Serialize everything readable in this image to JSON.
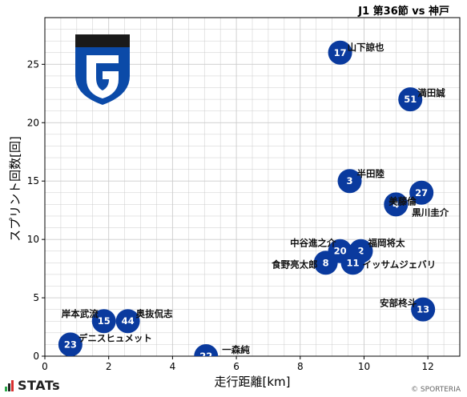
{
  "header": {
    "title": "J1 第36節 vs 神戸"
  },
  "footer": {
    "brand": "STATs",
    "copyright": "© SPORTERIA"
  },
  "colors": {
    "marker": "#0a3a9e",
    "grid": "#cccccc",
    "logo_dark": "#1a1a1a",
    "logo_blue": "#0b4aa8"
  },
  "chart_data": {
    "type": "scatter",
    "title": "",
    "xlabel": "走行距離[km]",
    "ylabel": "スプリント回数[回]",
    "xlim": [
      0,
      13
    ],
    "ylim": [
      0,
      29
    ],
    "xticks": [
      0,
      2,
      4,
      6,
      8,
      10,
      12
    ],
    "yticks": [
      0,
      5,
      10,
      15,
      20,
      25
    ],
    "grid": true,
    "points": [
      {
        "number": "17",
        "name": "山下諒也",
        "x": 9.25,
        "y": 26
      },
      {
        "number": "51",
        "name": "満田誠",
        "x": 11.45,
        "y": 22
      },
      {
        "number": "3",
        "name": "半田陸",
        "x": 9.55,
        "y": 15
      },
      {
        "number": "27",
        "name": "",
        "x": 11.8,
        "y": 14
      },
      {
        "number": "4",
        "name": "美藤倫",
        "x": 11.0,
        "y": 13
      },
      {
        "number": "",
        "name": "黒川圭介",
        "x": 11.0,
        "y": 13
      },
      {
        "number": "20",
        "name": "中谷進之介",
        "x": 9.25,
        "y": 9
      },
      {
        "number": "2",
        "name": "福岡将太",
        "x": 9.9,
        "y": 9
      },
      {
        "number": "8",
        "name": "食野亮太郎",
        "x": 8.8,
        "y": 8
      },
      {
        "number": "11",
        "name": "イッサムジェバリ",
        "x": 9.65,
        "y": 8
      },
      {
        "number": "13",
        "name": "安部柊斗",
        "x": 11.85,
        "y": 4
      },
      {
        "number": "15",
        "name": "岸本武流",
        "x": 1.85,
        "y": 3
      },
      {
        "number": "44",
        "name": "奥抜侃志",
        "x": 2.6,
        "y": 3
      },
      {
        "number": "23",
        "name": "デニスヒュメット",
        "x": 0.8,
        "y": 1
      },
      {
        "number": "22",
        "name": "一森純",
        "x": 5.05,
        "y": 0
      }
    ]
  }
}
